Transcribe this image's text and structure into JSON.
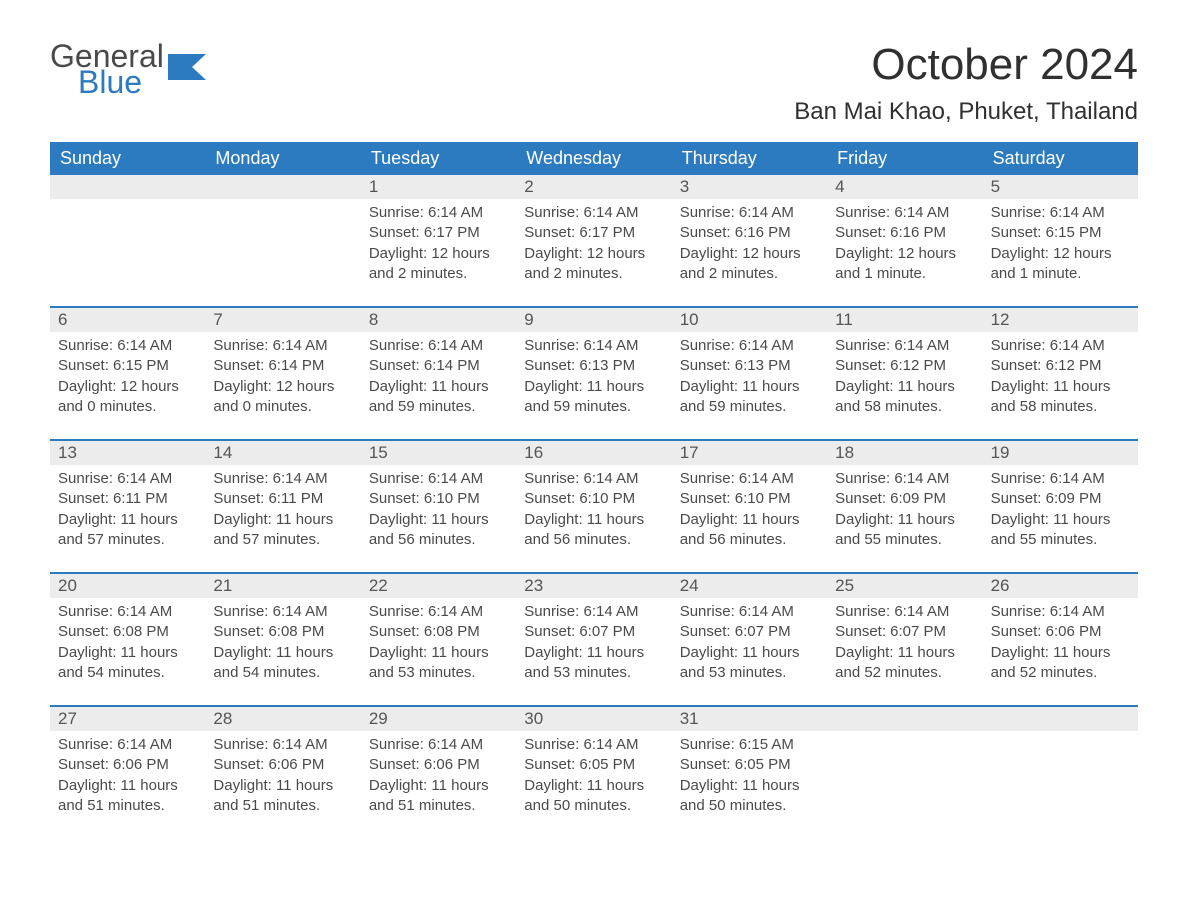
{
  "logo": {
    "first": "General",
    "second": "Blue"
  },
  "title": "October 2024",
  "location": "Ban Mai Khao, Phuket, Thailand",
  "colors": {
    "header_bg": "#2c7ac0",
    "header_text": "#ffffff",
    "daynum_bg": "#ececec",
    "week_border": "#2c7ac0",
    "text": "#4a4a4a",
    "title_text": "#303030",
    "background": "#ffffff"
  },
  "day_headers": [
    "Sunday",
    "Monday",
    "Tuesday",
    "Wednesday",
    "Thursday",
    "Friday",
    "Saturday"
  ],
  "weeks": [
    [
      {
        "n": "",
        "sunrise": "",
        "sunset": "",
        "daylight": ""
      },
      {
        "n": "",
        "sunrise": "",
        "sunset": "",
        "daylight": ""
      },
      {
        "n": "1",
        "sunrise": "Sunrise: 6:14 AM",
        "sunset": "Sunset: 6:17 PM",
        "daylight": "Daylight: 12 hours and 2 minutes."
      },
      {
        "n": "2",
        "sunrise": "Sunrise: 6:14 AM",
        "sunset": "Sunset: 6:17 PM",
        "daylight": "Daylight: 12 hours and 2 minutes."
      },
      {
        "n": "3",
        "sunrise": "Sunrise: 6:14 AM",
        "sunset": "Sunset: 6:16 PM",
        "daylight": "Daylight: 12 hours and 2 minutes."
      },
      {
        "n": "4",
        "sunrise": "Sunrise: 6:14 AM",
        "sunset": "Sunset: 6:16 PM",
        "daylight": "Daylight: 12 hours and 1 minute."
      },
      {
        "n": "5",
        "sunrise": "Sunrise: 6:14 AM",
        "sunset": "Sunset: 6:15 PM",
        "daylight": "Daylight: 12 hours and 1 minute."
      }
    ],
    [
      {
        "n": "6",
        "sunrise": "Sunrise: 6:14 AM",
        "sunset": "Sunset: 6:15 PM",
        "daylight": "Daylight: 12 hours and 0 minutes."
      },
      {
        "n": "7",
        "sunrise": "Sunrise: 6:14 AM",
        "sunset": "Sunset: 6:14 PM",
        "daylight": "Daylight: 12 hours and 0 minutes."
      },
      {
        "n": "8",
        "sunrise": "Sunrise: 6:14 AM",
        "sunset": "Sunset: 6:14 PM",
        "daylight": "Daylight: 11 hours and 59 minutes."
      },
      {
        "n": "9",
        "sunrise": "Sunrise: 6:14 AM",
        "sunset": "Sunset: 6:13 PM",
        "daylight": "Daylight: 11 hours and 59 minutes."
      },
      {
        "n": "10",
        "sunrise": "Sunrise: 6:14 AM",
        "sunset": "Sunset: 6:13 PM",
        "daylight": "Daylight: 11 hours and 59 minutes."
      },
      {
        "n": "11",
        "sunrise": "Sunrise: 6:14 AM",
        "sunset": "Sunset: 6:12 PM",
        "daylight": "Daylight: 11 hours and 58 minutes."
      },
      {
        "n": "12",
        "sunrise": "Sunrise: 6:14 AM",
        "sunset": "Sunset: 6:12 PM",
        "daylight": "Daylight: 11 hours and 58 minutes."
      }
    ],
    [
      {
        "n": "13",
        "sunrise": "Sunrise: 6:14 AM",
        "sunset": "Sunset: 6:11 PM",
        "daylight": "Daylight: 11 hours and 57 minutes."
      },
      {
        "n": "14",
        "sunrise": "Sunrise: 6:14 AM",
        "sunset": "Sunset: 6:11 PM",
        "daylight": "Daylight: 11 hours and 57 minutes."
      },
      {
        "n": "15",
        "sunrise": "Sunrise: 6:14 AM",
        "sunset": "Sunset: 6:10 PM",
        "daylight": "Daylight: 11 hours and 56 minutes."
      },
      {
        "n": "16",
        "sunrise": "Sunrise: 6:14 AM",
        "sunset": "Sunset: 6:10 PM",
        "daylight": "Daylight: 11 hours and 56 minutes."
      },
      {
        "n": "17",
        "sunrise": "Sunrise: 6:14 AM",
        "sunset": "Sunset: 6:10 PM",
        "daylight": "Daylight: 11 hours and 56 minutes."
      },
      {
        "n": "18",
        "sunrise": "Sunrise: 6:14 AM",
        "sunset": "Sunset: 6:09 PM",
        "daylight": "Daylight: 11 hours and 55 minutes."
      },
      {
        "n": "19",
        "sunrise": "Sunrise: 6:14 AM",
        "sunset": "Sunset: 6:09 PM",
        "daylight": "Daylight: 11 hours and 55 minutes."
      }
    ],
    [
      {
        "n": "20",
        "sunrise": "Sunrise: 6:14 AM",
        "sunset": "Sunset: 6:08 PM",
        "daylight": "Daylight: 11 hours and 54 minutes."
      },
      {
        "n": "21",
        "sunrise": "Sunrise: 6:14 AM",
        "sunset": "Sunset: 6:08 PM",
        "daylight": "Daylight: 11 hours and 54 minutes."
      },
      {
        "n": "22",
        "sunrise": "Sunrise: 6:14 AM",
        "sunset": "Sunset: 6:08 PM",
        "daylight": "Daylight: 11 hours and 53 minutes."
      },
      {
        "n": "23",
        "sunrise": "Sunrise: 6:14 AM",
        "sunset": "Sunset: 6:07 PM",
        "daylight": "Daylight: 11 hours and 53 minutes."
      },
      {
        "n": "24",
        "sunrise": "Sunrise: 6:14 AM",
        "sunset": "Sunset: 6:07 PM",
        "daylight": "Daylight: 11 hours and 53 minutes."
      },
      {
        "n": "25",
        "sunrise": "Sunrise: 6:14 AM",
        "sunset": "Sunset: 6:07 PM",
        "daylight": "Daylight: 11 hours and 52 minutes."
      },
      {
        "n": "26",
        "sunrise": "Sunrise: 6:14 AM",
        "sunset": "Sunset: 6:06 PM",
        "daylight": "Daylight: 11 hours and 52 minutes."
      }
    ],
    [
      {
        "n": "27",
        "sunrise": "Sunrise: 6:14 AM",
        "sunset": "Sunset: 6:06 PM",
        "daylight": "Daylight: 11 hours and 51 minutes."
      },
      {
        "n": "28",
        "sunrise": "Sunrise: 6:14 AM",
        "sunset": "Sunset: 6:06 PM",
        "daylight": "Daylight: 11 hours and 51 minutes."
      },
      {
        "n": "29",
        "sunrise": "Sunrise: 6:14 AM",
        "sunset": "Sunset: 6:06 PM",
        "daylight": "Daylight: 11 hours and 51 minutes."
      },
      {
        "n": "30",
        "sunrise": "Sunrise: 6:14 AM",
        "sunset": "Sunset: 6:05 PM",
        "daylight": "Daylight: 11 hours and 50 minutes."
      },
      {
        "n": "31",
        "sunrise": "Sunrise: 6:15 AM",
        "sunset": "Sunset: 6:05 PM",
        "daylight": "Daylight: 11 hours and 50 minutes."
      },
      {
        "n": "",
        "sunrise": "",
        "sunset": "",
        "daylight": ""
      },
      {
        "n": "",
        "sunrise": "",
        "sunset": "",
        "daylight": ""
      }
    ]
  ]
}
